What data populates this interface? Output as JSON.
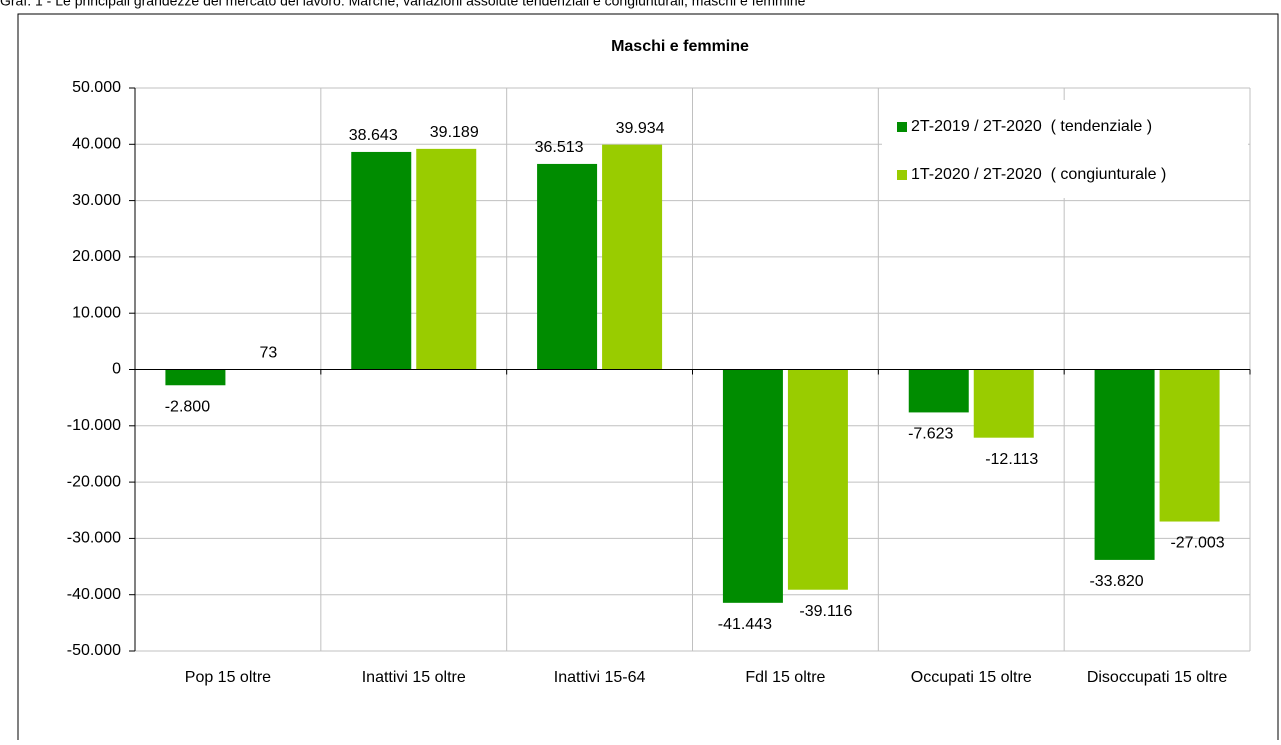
{
  "chart_data": {
    "type": "bar",
    "caption": "Graf. 1 - Le principali grandezze del mercato del lavoro: Marche, variazioni assolute tendenziali e congiunturali, maschi e femmine",
    "title": "Maschi e femmine",
    "categories": [
      "Pop 15 oltre",
      "Inattivi 15 oltre",
      "Inattivi 15-64",
      "Fdl 15 oltre",
      "Occupati 15 oltre",
      "Disoccupati 15 oltre"
    ],
    "series": [
      {
        "name": "2T-2019 / 2T-2020  ( tendenziale )",
        "color": "#008c00",
        "values": [
          -2800,
          38643,
          36513,
          -41443,
          -7623,
          -33820
        ],
        "value_labels": [
          "-2.800",
          "38.643",
          "36.513",
          "-41.443",
          "-7.623",
          "-33.820"
        ]
      },
      {
        "name": "1T-2020 / 2T-2020  ( congiunturale )",
        "color": "#99cc00",
        "values": [
          73,
          39189,
          39934,
          -39116,
          -12113,
          -27003
        ],
        "value_labels": [
          "73",
          "39.189",
          "39.934",
          "-39.116",
          "-12.113",
          "-27.003"
        ]
      }
    ],
    "ylim": [
      -50000,
      50000
    ],
    "yticks": [
      {
        "value": -50000,
        "label": "-50.000"
      },
      {
        "value": -40000,
        "label": "-40.000"
      },
      {
        "value": -30000,
        "label": "-30.000"
      },
      {
        "value": -20000,
        "label": "-20.000"
      },
      {
        "value": -10000,
        "label": "-10.000"
      },
      0,
      {
        "value": 10000,
        "label": "10.000"
      },
      {
        "value": 20000,
        "label": "20.000"
      },
      {
        "value": 30000,
        "label": "30.000"
      },
      {
        "value": 40000,
        "label": "40.000"
      },
      {
        "value": 50000,
        "label": "50.000"
      }
    ],
    "grid": true,
    "legend": "upper right"
  }
}
